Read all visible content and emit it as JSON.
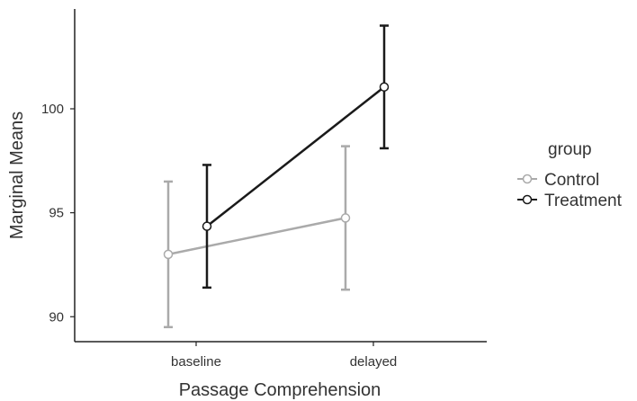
{
  "chart_data": {
    "type": "line",
    "title": "",
    "xlabel": "Passage Comprehension",
    "ylabel": "Marginal Means",
    "categories": [
      "baseline",
      "delayed"
    ],
    "ylim": [
      88.8,
      104.8
    ],
    "yticks": [
      90,
      95,
      100
    ],
    "grid": false,
    "legend": {
      "title": "group",
      "position": "right"
    },
    "series": [
      {
        "name": "Control",
        "color": "#aaaaaa",
        "values": [
          93.0,
          94.75
        ],
        "lower": [
          89.5,
          91.3
        ],
        "upper": [
          96.5,
          98.2
        ]
      },
      {
        "name": "Treatment",
        "color": "#1a1a1a",
        "values": [
          94.35,
          101.05
        ],
        "lower": [
          91.4,
          98.1
        ],
        "upper": [
          97.3,
          104.0
        ]
      }
    ]
  }
}
